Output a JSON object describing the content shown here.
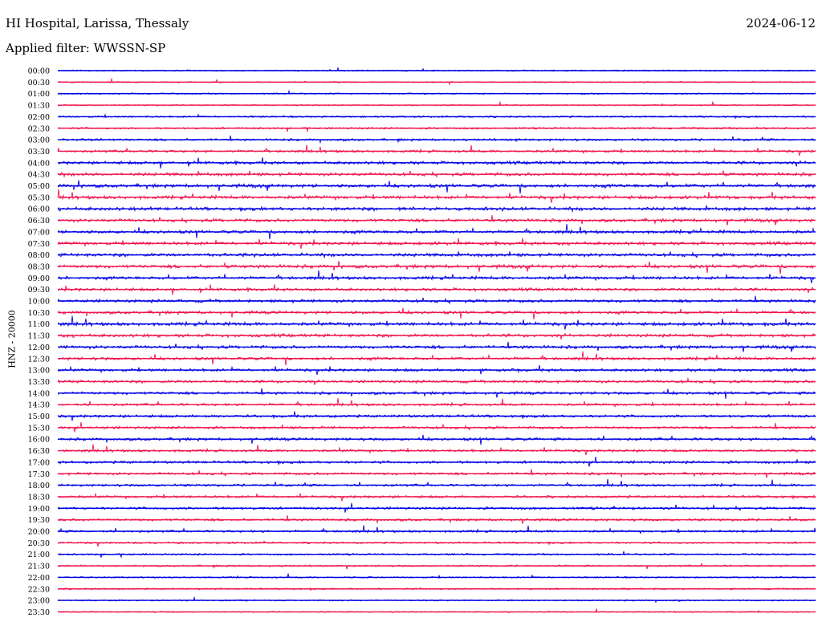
{
  "header": {
    "title": "HI Hospital, Larissa, Thessaly",
    "date": "2024-06-12",
    "filter": "Applied filter: WWSSN-SP"
  },
  "chart_data": {
    "type": "line",
    "chart_kind": "helicorder seismogram",
    "ylabel": "HNZ - 20000",
    "trace_colors": [
      "#0000e6",
      "#f0164d"
    ],
    "rows": [
      {
        "time": "00:00",
        "activity": 0.15
      },
      {
        "time": "00:30",
        "activity": 0.12
      },
      {
        "time": "01:00",
        "activity": 0.15
      },
      {
        "time": "01:30",
        "activity": 0.15
      },
      {
        "time": "02:00",
        "activity": 0.3
      },
      {
        "time": "02:30",
        "activity": 0.35
      },
      {
        "time": "03:00",
        "activity": 0.5
      },
      {
        "time": "03:30",
        "activity": 0.6
      },
      {
        "time": "04:00",
        "activity": 0.8
      },
      {
        "time": "04:30",
        "activity": 0.9
      },
      {
        "time": "05:00",
        "activity": 0.95
      },
      {
        "time": "05:30",
        "activity": 0.9
      },
      {
        "time": "06:00",
        "activity": 0.95
      },
      {
        "time": "06:30",
        "activity": 0.85
      },
      {
        "time": "07:00",
        "activity": 0.85
      },
      {
        "time": "07:30",
        "activity": 0.85
      },
      {
        "time": "08:00",
        "activity": 0.9
      },
      {
        "time": "08:30",
        "activity": 0.95
      },
      {
        "time": "09:00",
        "activity": 0.8
      },
      {
        "time": "09:30",
        "activity": 0.75
      },
      {
        "time": "10:00",
        "activity": 0.8
      },
      {
        "time": "10:30",
        "activity": 0.8
      },
      {
        "time": "11:00",
        "activity": 0.9
      },
      {
        "time": "11:30",
        "activity": 0.85
      },
      {
        "time": "12:00",
        "activity": 0.85
      },
      {
        "time": "12:30",
        "activity": 0.75
      },
      {
        "time": "13:00",
        "activity": 0.7
      },
      {
        "time": "13:30",
        "activity": 0.7
      },
      {
        "time": "14:00",
        "activity": 0.7
      },
      {
        "time": "14:30",
        "activity": 0.6
      },
      {
        "time": "15:00",
        "activity": 0.65
      },
      {
        "time": "15:30",
        "activity": 0.65
      },
      {
        "time": "16:00",
        "activity": 0.7
      },
      {
        "time": "16:30",
        "activity": 0.6
      },
      {
        "time": "17:00",
        "activity": 0.65
      },
      {
        "time": "17:30",
        "activity": 0.6
      },
      {
        "time": "18:00",
        "activity": 0.55
      },
      {
        "time": "18:30",
        "activity": 0.55
      },
      {
        "time": "19:00",
        "activity": 0.6
      },
      {
        "time": "19:30",
        "activity": 0.6
      },
      {
        "time": "20:00",
        "activity": 0.55
      },
      {
        "time": "20:30",
        "activity": 0.35
      },
      {
        "time": "21:00",
        "activity": 0.3
      },
      {
        "time": "21:30",
        "activity": 0.3
      },
      {
        "time": "22:00",
        "activity": 0.2
      },
      {
        "time": "22:30",
        "activity": 0.25
      },
      {
        "time": "23:00",
        "activity": 0.15
      },
      {
        "time": "23:30",
        "activity": 0.1
      }
    ]
  }
}
